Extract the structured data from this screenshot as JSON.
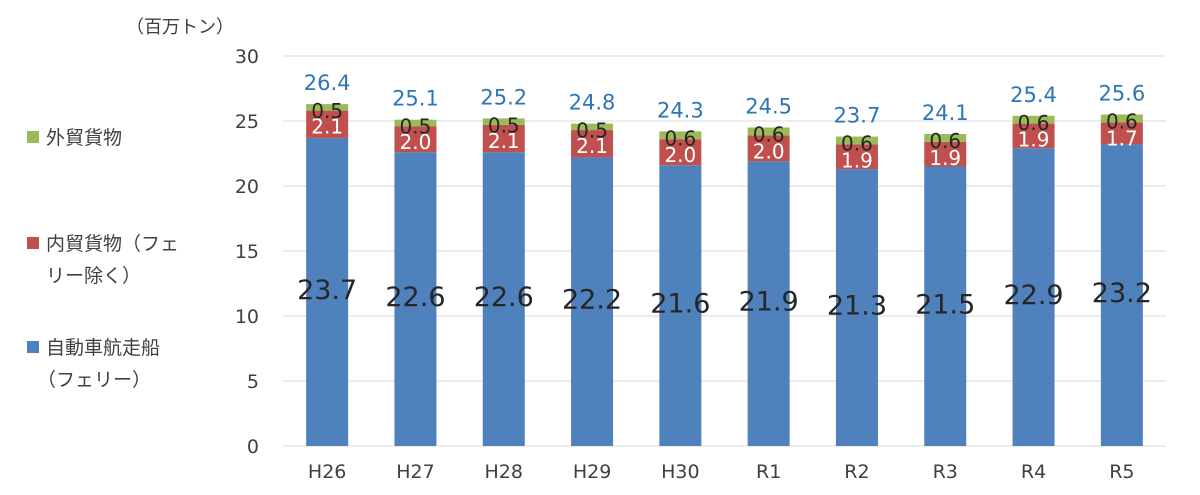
{
  "chart_data": {
    "type": "bar",
    "stacked": true,
    "unit_label": "（百万トン）",
    "categories": [
      "H26",
      "H27",
      "H28",
      "H29",
      "H30",
      "R1",
      "R2",
      "R3",
      "R4",
      "R5"
    ],
    "series": [
      {
        "name": "自動車航走船（フェリー）",
        "legend_lines": [
          "自動車航走船",
          "（フェリー）"
        ],
        "color": "#4f81bd",
        "values": [
          23.7,
          22.6,
          22.6,
          22.2,
          21.6,
          21.9,
          21.3,
          21.5,
          22.9,
          23.2
        ],
        "labels": [
          "23.7",
          "22.6",
          "22.6",
          "22.2",
          "21.6",
          "21.9",
          "21.3",
          "21.5",
          "22.9",
          "23.2"
        ]
      },
      {
        "name": "内貿貨物（フェリー除く）",
        "legend_lines": [
          "内貿貨物（フェ",
          "リー除く）"
        ],
        "color": "#c0504d",
        "values": [
          2.1,
          2.0,
          2.1,
          2.1,
          2.0,
          2.0,
          1.9,
          1.9,
          1.9,
          1.7
        ],
        "labels": [
          "2.1",
          "2.0",
          "2.1",
          "2.1",
          "2.0",
          "2.0",
          "1.9",
          "1.9",
          "1.9",
          "1.7"
        ]
      },
      {
        "name": "外貿貨物",
        "legend_lines": [
          "外貿貨物"
        ],
        "color": "#9bbb59",
        "values": [
          0.5,
          0.5,
          0.5,
          0.5,
          0.6,
          0.6,
          0.6,
          0.6,
          0.6,
          0.6
        ],
        "labels": [
          "0.5",
          "0.5",
          "0.5",
          "0.5",
          "0.6",
          "0.6",
          "0.6",
          "0.6",
          "0.6",
          "0.6"
        ]
      }
    ],
    "totals": [
      26.4,
      25.1,
      25.2,
      24.8,
      24.3,
      24.5,
      23.7,
      24.1,
      25.4,
      25.6
    ],
    "total_labels": [
      "26.4",
      "25.1",
      "25.2",
      "24.8",
      "24.3",
      "24.5",
      "23.7",
      "24.1",
      "25.4",
      "25.6"
    ],
    "total_color": "#2e75b6",
    "ylim": [
      0,
      30
    ],
    "yticks": [
      0,
      5,
      10,
      15,
      20,
      25,
      30
    ],
    "ytick_labels": [
      "0",
      "5",
      "10",
      "15",
      "20",
      "25",
      "30"
    ],
    "grid": true,
    "grid_color": "#d9d9d9",
    "legend_position": "left"
  }
}
